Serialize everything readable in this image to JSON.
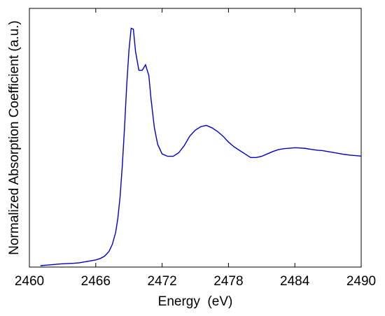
{
  "chart_data": {
    "type": "line",
    "title": "",
    "xlabel": "Energy  (eV)",
    "ylabel": "Normalized Absorption Coefficient (a.u.)",
    "xlim": [
      2460,
      2490
    ],
    "ylim": [
      0,
      1
    ],
    "xticks": [
      2460,
      2466,
      2472,
      2478,
      2484,
      2490
    ],
    "xtick_labels": [
      "2460",
      "2466",
      "2472",
      "2478",
      "2484",
      "2490"
    ],
    "yticks_shown": false,
    "grid": false,
    "legend": "none",
    "colors": {
      "line": "#0000cc",
      "axes": "#000000"
    },
    "series": [
      {
        "x": [
          2461.0,
          2461.5,
          2462.0,
          2462.5,
          2463.0,
          2463.5,
          2464.0,
          2464.5,
          2465.0,
          2465.5,
          2466.0,
          2466.4,
          2466.8,
          2467.2,
          2467.5,
          2467.8,
          2468.0,
          2468.2,
          2468.4,
          2468.6,
          2468.8,
          2469.0,
          2469.2,
          2469.4,
          2469.6,
          2469.9,
          2470.2,
          2470.5,
          2470.8,
          2471.0,
          2471.3,
          2471.6,
          2472.0,
          2472.5,
          2473.0,
          2473.5,
          2474.0,
          2474.5,
          2475.0,
          2475.5,
          2476.0,
          2476.5,
          2477.0,
          2477.5,
          2478.0,
          2478.5,
          2479.0,
          2479.5,
          2480.0,
          2480.5,
          2481.0,
          2481.5,
          2482.0,
          2482.5,
          2483.0,
          2483.5,
          2484.0,
          2484.5,
          2485.0,
          2485.5,
          2486.0,
          2486.5,
          2487.0,
          2487.5,
          2488.0,
          2488.5,
          2489.0,
          2489.5,
          2490.0
        ],
        "y": [
          0.0,
          0.002,
          0.004,
          0.006,
          0.008,
          0.009,
          0.01,
          0.012,
          0.016,
          0.02,
          0.024,
          0.03,
          0.04,
          0.06,
          0.09,
          0.14,
          0.2,
          0.29,
          0.42,
          0.58,
          0.76,
          0.905,
          0.999,
          0.995,
          0.9,
          0.822,
          0.822,
          0.845,
          0.8,
          0.7,
          0.58,
          0.51,
          0.47,
          0.46,
          0.46,
          0.475,
          0.505,
          0.545,
          0.57,
          0.585,
          0.59,
          0.58,
          0.565,
          0.545,
          0.52,
          0.5,
          0.485,
          0.47,
          0.455,
          0.455,
          0.46,
          0.47,
          0.48,
          0.488,
          0.492,
          0.494,
          0.496,
          0.495,
          0.493,
          0.489,
          0.486,
          0.484,
          0.48,
          0.476,
          0.472,
          0.468,
          0.465,
          0.463,
          0.461
        ]
      }
    ]
  }
}
